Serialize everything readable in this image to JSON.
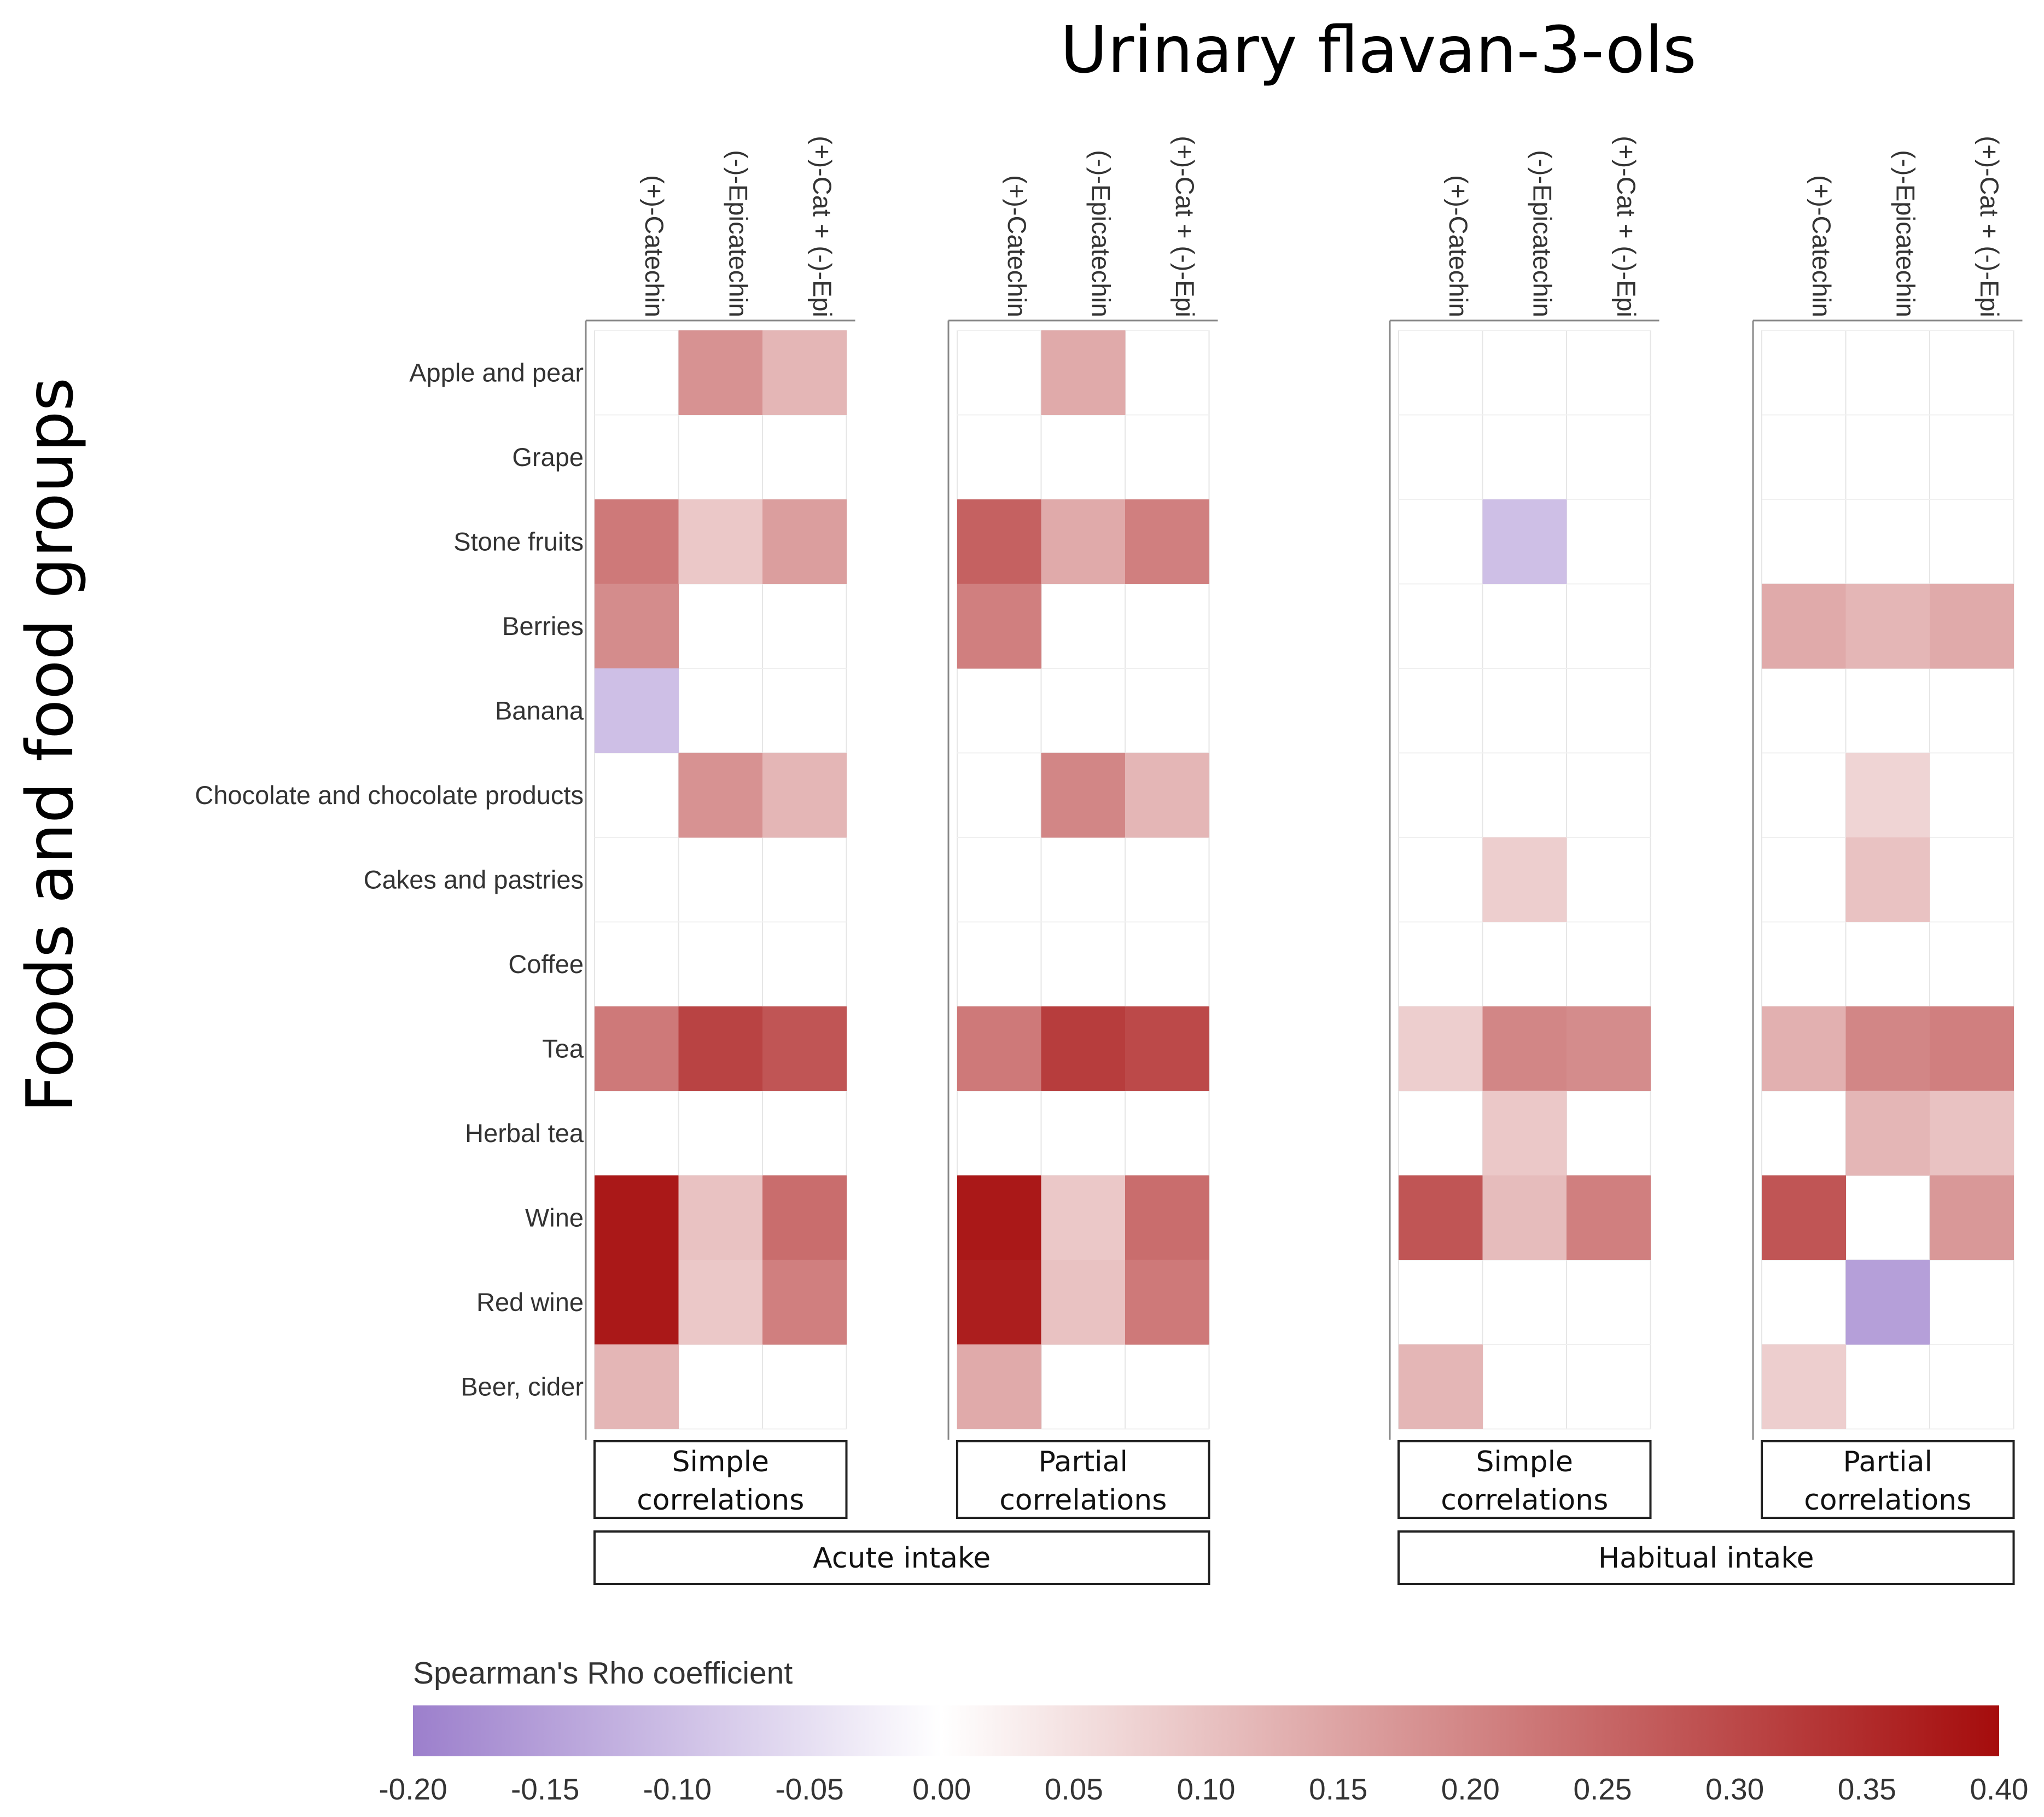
{
  "chart_data": {
    "type": "heatmap",
    "title": "Urinary flavan-3-ols",
    "ylabel": "Foods and food groups",
    "rows": [
      "Apple and pear",
      "Grape",
      "Stone fruits",
      "Berries",
      "Banana",
      "Chocolate and chocolate products",
      "Cakes and pastries",
      "Coffee",
      "Tea",
      "Herbal tea",
      "Wine",
      "Red wine",
      "Beer, cider"
    ],
    "columns": [
      "(+)-Catechin",
      "(-)-Epicatechin",
      "(+)-Cat + (-)-Epi"
    ],
    "panels": [
      {
        "strip": "Simple\ncorrelations",
        "group": "Acute intake",
        "values": [
          [
            0,
            0.18,
            0.12
          ],
          [
            0,
            0,
            0
          ],
          [
            0.22,
            0.09,
            0.16
          ],
          [
            0.19,
            0,
            0
          ],
          [
            -0.1,
            0,
            0
          ],
          [
            0,
            0.18,
            0.12
          ],
          [
            0,
            0,
            0
          ],
          [
            0,
            0,
            0
          ],
          [
            0.22,
            0.31,
            0.28
          ],
          [
            0,
            0,
            0
          ],
          [
            0.38,
            0.1,
            0.24
          ],
          [
            0.38,
            0.09,
            0.21
          ],
          [
            0.12,
            0,
            0
          ]
        ]
      },
      {
        "strip": "Partial\ncorrelations",
        "group": "Acute intake",
        "values": [
          [
            0,
            0.14,
            0
          ],
          [
            0,
            0,
            0
          ],
          [
            0.26,
            0.14,
            0.21
          ],
          [
            0.21,
            0,
            0
          ],
          [
            0,
            0,
            0
          ],
          [
            0,
            0.2,
            0.12
          ],
          [
            0,
            0,
            0
          ],
          [
            0,
            0,
            0
          ],
          [
            0.22,
            0.32,
            0.3
          ],
          [
            0,
            0,
            0
          ],
          [
            0.38,
            0.09,
            0.24
          ],
          [
            0.37,
            0.1,
            0.22
          ],
          [
            0.14,
            0,
            0
          ]
        ]
      },
      {
        "strip": "Simple\ncorrelations",
        "group": "Habitual intake",
        "values": [
          [
            0,
            0,
            0
          ],
          [
            0,
            0,
            0
          ],
          [
            0,
            -0.1,
            0
          ],
          [
            0,
            0,
            0
          ],
          [
            0,
            0,
            0
          ],
          [
            0,
            0,
            0
          ],
          [
            0,
            0.08,
            0
          ],
          [
            0,
            0,
            0
          ],
          [
            0.08,
            0.2,
            0.19
          ],
          [
            0,
            0.09,
            0
          ],
          [
            0.28,
            0.11,
            0.21
          ],
          [
            0,
            0,
            0
          ],
          [
            0.12,
            0,
            0
          ]
        ]
      },
      {
        "strip": "Partial\ncorrelations",
        "group": "Habitual intake",
        "values": [
          [
            0,
            0,
            0
          ],
          [
            0,
            0,
            0
          ],
          [
            0,
            0,
            0
          ],
          [
            0.14,
            0.12,
            0.14
          ],
          [
            0,
            0,
            0
          ],
          [
            0,
            0.07,
            0
          ],
          [
            0,
            0.1,
            0
          ],
          [
            0,
            0,
            0
          ],
          [
            0.13,
            0.2,
            0.21
          ],
          [
            0,
            0.12,
            0.1
          ],
          [
            0.28,
            0,
            0.17
          ],
          [
            0,
            -0.15,
            0
          ],
          [
            0.08,
            0,
            0
          ]
        ]
      }
    ],
    "groups": [
      "Acute intake",
      "Habitual intake"
    ],
    "colorbar": {
      "title": "Spearman's Rho coefficient",
      "range": [
        -0.2,
        0.4
      ],
      "ticks": [
        "-0.20",
        "-0.15",
        "-0.10",
        "-0.05",
        "0.00",
        "0.05",
        "0.10",
        "0.15",
        "0.20",
        "0.25",
        "0.30",
        "0.35",
        "0.40"
      ],
      "colors": [
        "#9c7fcc",
        "#ffffff",
        "#a50c0c"
      ]
    }
  }
}
